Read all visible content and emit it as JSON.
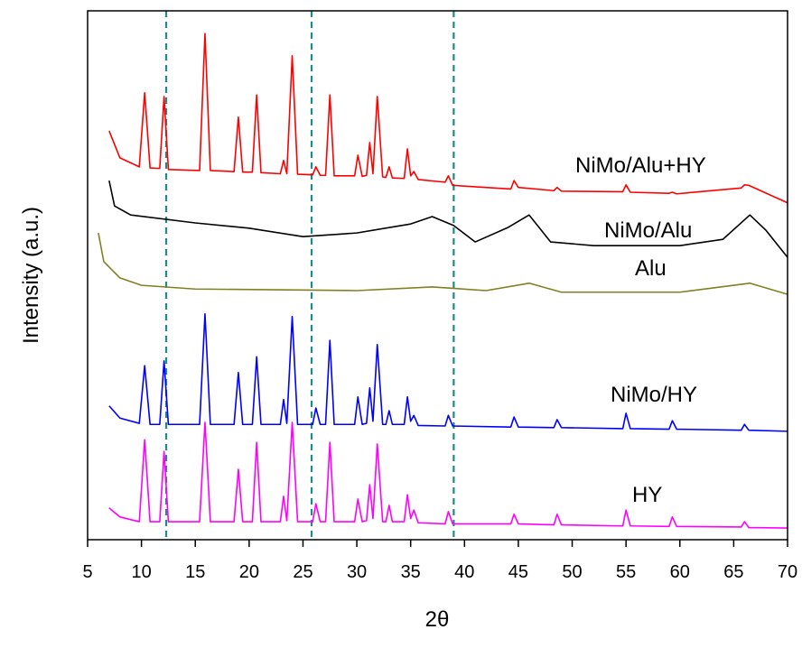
{
  "chart_data": {
    "type": "line",
    "x_label": "2θ",
    "y_label": "Intensity (a.u.)",
    "xlim": [
      5,
      70
    ],
    "ylim": [
      0,
      100
    ],
    "xticks": [
      5,
      10,
      15,
      20,
      25,
      30,
      35,
      40,
      45,
      50,
      55,
      60,
      65,
      70
    ],
    "reference_lines": [
      12.3,
      25.8,
      39
    ],
    "reference_color": "#1a8c8c",
    "series": [
      {
        "name": "NiMo/Alu+HY",
        "color": "#ff0000",
        "x": [
          7,
          8,
          9.8,
          10.3,
          10.8,
          11.7,
          12.1,
          12.5,
          15.4,
          15.9,
          16.4,
          18.6,
          19,
          19.4,
          20.3,
          20.7,
          21.1,
          22.9,
          23.2,
          23.5,
          24,
          24.5,
          25.9,
          26.2,
          26.6,
          27.1,
          27.5,
          27.9,
          29.8,
          30.1,
          30.5,
          30.9,
          31.2,
          31.5,
          31.9,
          32.4,
          32.7,
          33,
          33.3,
          34.4,
          34.7,
          35,
          35.3,
          35.7,
          38.2,
          38.5,
          38.9,
          44.3,
          44.6,
          45,
          48.3,
          48.6,
          49,
          54.7,
          55,
          55.4,
          59,
          59.3,
          59.7,
          65.7,
          66,
          66.4,
          70
        ],
        "values": [
          77.3,
          72.2,
          70.5,
          84.5,
          70.3,
          70.2,
          83.8,
          70.0,
          69.8,
          95.7,
          69.8,
          69.6,
          79.9,
          69.5,
          69.5,
          84.1,
          69.4,
          69.2,
          71.7,
          69.2,
          91.5,
          69.1,
          69.0,
          70.5,
          68.9,
          68.9,
          84.1,
          68.8,
          68.8,
          72.7,
          68.7,
          68.9,
          75.1,
          69.2,
          83.8,
          68.6,
          68.5,
          70.5,
          68.4,
          68.3,
          73.9,
          68.8,
          69.6,
          68.1,
          67.6,
          68.8,
          67.0,
          66.3,
          67.9,
          66.6,
          66.0,
          66.6,
          65.9,
          65.8,
          67.1,
          65.7,
          65.5,
          65.7,
          65.4,
          66.5,
          67.1,
          67.0,
          63.7
        ]
      },
      {
        "name": "NiMo/Alu",
        "color": "#000000",
        "x": [
          7,
          7.5,
          9,
          15,
          20,
          25,
          30,
          35,
          37,
          39,
          41,
          44,
          46,
          48,
          52,
          60,
          64,
          66.5,
          68,
          70
        ],
        "values": [
          67.9,
          63.1,
          61.4,
          59.9,
          58.9,
          57.3,
          58.0,
          59.7,
          61.1,
          59.4,
          56.3,
          59.0,
          61.4,
          56.3,
          55.6,
          55.6,
          56.8,
          61.4,
          58.5,
          53.4
        ]
      },
      {
        "name": "Alu",
        "color": "#808020",
        "x": [
          6,
          6.5,
          8,
          10,
          15,
          30,
          37,
          42,
          46,
          49,
          60,
          66.5,
          70
        ],
        "values": [
          58.0,
          52.6,
          49.5,
          48.1,
          47.4,
          47.1,
          47.8,
          47.1,
          48.5,
          46.8,
          46.8,
          48.5,
          46.4
        ]
      },
      {
        "name": "NiMo/HY",
        "color": "#0000ff",
        "x": [
          7,
          8,
          9.8,
          10.3,
          10.8,
          11.7,
          12.1,
          12.5,
          15.4,
          15.9,
          16.4,
          18.6,
          19,
          19.4,
          20.3,
          20.7,
          21.1,
          22.9,
          23.2,
          23.5,
          24,
          24.5,
          25.9,
          26.2,
          26.6,
          27.1,
          27.5,
          27.9,
          29.8,
          30.1,
          30.5,
          30.9,
          31.2,
          31.5,
          31.9,
          32.4,
          32.7,
          33,
          33.3,
          34.4,
          34.7,
          35,
          35.3,
          35.7,
          38.2,
          38.5,
          38.9,
          44.3,
          44.6,
          45,
          48.3,
          48.6,
          49,
          54.7,
          55,
          55.4,
          59,
          59.3,
          59.7,
          65.7,
          66,
          66.4,
          70
        ],
        "values": [
          25.3,
          23.0,
          22.0,
          32.9,
          21.8,
          21.8,
          33.8,
          21.8,
          21.8,
          42.7,
          21.8,
          21.8,
          31.6,
          21.8,
          21.8,
          34.6,
          21.8,
          21.8,
          26.5,
          22.0,
          42.2,
          21.8,
          21.8,
          24.9,
          21.8,
          21.8,
          37.7,
          21.8,
          21.8,
          27.0,
          21.8,
          22.0,
          28.7,
          22.4,
          36.9,
          21.8,
          21.8,
          24.4,
          21.8,
          21.8,
          27.0,
          22.4,
          23.5,
          21.6,
          21.5,
          23.5,
          21.5,
          21.3,
          23.2,
          21.3,
          21.2,
          22.7,
          21.2,
          21.0,
          23.9,
          21.0,
          20.9,
          22.5,
          20.9,
          20.7,
          21.8,
          20.7,
          20.5
        ]
      },
      {
        "name": "HY",
        "color": "#ff00ff",
        "x": [
          7,
          8,
          9.8,
          10.3,
          10.8,
          11.7,
          12.1,
          12.5,
          15.4,
          15.9,
          16.4,
          18.6,
          19,
          19.4,
          20.3,
          20.7,
          21.1,
          22.9,
          23.2,
          23.5,
          24,
          24.5,
          25.9,
          26.2,
          26.6,
          27.1,
          27.5,
          27.9,
          29.8,
          30.1,
          30.5,
          30.9,
          31.2,
          31.5,
          31.9,
          32.4,
          32.7,
          33,
          33.3,
          34.4,
          34.7,
          35,
          35.3,
          35.7,
          38.2,
          38.5,
          38.9,
          44.3,
          44.6,
          45,
          48.3,
          48.6,
          49,
          54.7,
          55,
          55.4,
          59,
          59.3,
          59.7,
          65.7,
          66,
          66.4,
          70
        ],
        "values": [
          6.0,
          4.3,
          3.4,
          18.9,
          3.4,
          3.4,
          16.7,
          3.4,
          3.4,
          22.2,
          3.4,
          3.4,
          13.3,
          3.4,
          3.4,
          18.4,
          3.4,
          3.4,
          8.2,
          3.6,
          22.2,
          3.4,
          3.4,
          6.8,
          3.4,
          3.4,
          18.4,
          3.4,
          3.4,
          7.7,
          3.4,
          3.6,
          10.4,
          4.0,
          18.1,
          3.4,
          3.4,
          6.5,
          3.4,
          3.4,
          8.5,
          4.0,
          5.6,
          3.2,
          3.0,
          5.3,
          3.0,
          3.0,
          4.8,
          3.0,
          2.8,
          4.8,
          2.8,
          2.6,
          5.6,
          2.6,
          2.5,
          4.3,
          2.5,
          2.4,
          3.4,
          2.3,
          2.2
        ]
      }
    ]
  }
}
